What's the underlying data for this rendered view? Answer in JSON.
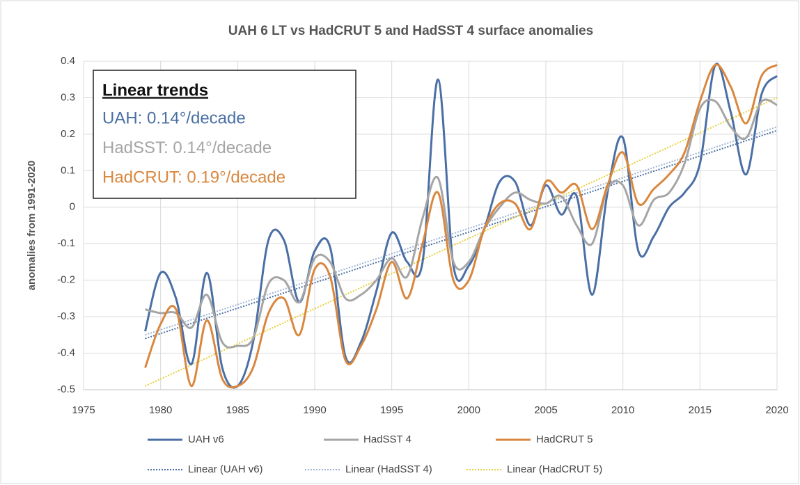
{
  "chart_data": {
    "type": "line",
    "title": "UAH 6 LT vs HadCRUT 5 and HadSST 4 surface anomalies",
    "y_label": "anomalies from 1991-2020",
    "x": [
      1979,
      1980,
      1981,
      1982,
      1983,
      1984,
      1985,
      1986,
      1987,
      1988,
      1989,
      1990,
      1991,
      1992,
      1993,
      1994,
      1995,
      1996,
      1997,
      1998,
      1999,
      2000,
      2001,
      2002,
      2003,
      2004,
      2005,
      2006,
      2007,
      2008,
      2009,
      2010,
      2011,
      2012,
      2013,
      2014,
      2015,
      2016,
      2017,
      2018,
      2019,
      2020
    ],
    "series": [
      {
        "name": "UAH v6",
        "color": "#4a6fa5",
        "values": [
          -0.34,
          -0.18,
          -0.25,
          -0.43,
          -0.18,
          -0.44,
          -0.49,
          -0.37,
          -0.09,
          -0.09,
          -0.26,
          -0.12,
          -0.11,
          -0.41,
          -0.37,
          -0.23,
          -0.07,
          -0.15,
          -0.15,
          0.35,
          -0.16,
          -0.16,
          -0.06,
          0.07,
          0.07,
          -0.05,
          0.06,
          -0.02,
          0.03,
          -0.24,
          0.04,
          0.19,
          -0.12,
          -0.08,
          0.0,
          0.04,
          0.12,
          0.39,
          0.26,
          0.09,
          0.31,
          0.36
        ]
      },
      {
        "name": "HadSST 4",
        "color": "#a5a5a5",
        "values": [
          -0.28,
          -0.29,
          -0.29,
          -0.33,
          -0.24,
          -0.37,
          -0.38,
          -0.36,
          -0.21,
          -0.2,
          -0.26,
          -0.14,
          -0.15,
          -0.25,
          -0.24,
          -0.2,
          -0.14,
          -0.19,
          -0.03,
          0.08,
          -0.15,
          -0.15,
          -0.06,
          0.0,
          0.04,
          0.02,
          0.01,
          0.03,
          -0.05,
          -0.1,
          0.05,
          0.06,
          -0.05,
          0.02,
          0.04,
          0.12,
          0.27,
          0.29,
          0.22,
          0.19,
          0.29,
          0.28
        ]
      },
      {
        "name": "HadCRUT 5",
        "color": "#d9873f",
        "values": [
          -0.44,
          -0.32,
          -0.28,
          -0.49,
          -0.31,
          -0.47,
          -0.49,
          -0.44,
          -0.29,
          -0.25,
          -0.35,
          -0.17,
          -0.19,
          -0.42,
          -0.38,
          -0.28,
          -0.15,
          -0.25,
          -0.1,
          0.04,
          -0.2,
          -0.2,
          -0.06,
          0.01,
          0.01,
          -0.06,
          0.07,
          0.04,
          0.06,
          -0.06,
          0.06,
          0.15,
          0.01,
          0.05,
          0.09,
          0.15,
          0.29,
          0.39,
          0.33,
          0.23,
          0.36,
          0.39
        ]
      }
    ],
    "trends": [
      {
        "name": "Linear (UAH v6)",
        "color": "#4a6fa5",
        "x": [
          1979,
          2020
        ],
        "values": [
          -0.36,
          0.21
        ]
      },
      {
        "name": "Linear (HadSST 4)",
        "color": "#9fb3d6",
        "x": [
          1979,
          2020
        ],
        "values": [
          -0.35,
          0.22
        ]
      },
      {
        "name": "Linear (HadCRUT 5)",
        "color": "#e6cf3c",
        "x": [
          1979,
          2020
        ],
        "values": [
          -0.49,
          0.3
        ]
      }
    ],
    "annotations": {
      "heading": "Linear trends",
      "lines": [
        {
          "text": "UAH: 0.14°/decade",
          "color": "#4a6fa5"
        },
        {
          "text": "HadSST: 0.14°/decade",
          "color": "#a5a5a5"
        },
        {
          "text": "HadCRUT: 0.19°/decade",
          "color": "#d9873f"
        }
      ]
    },
    "xlim": [
      1975,
      2020
    ],
    "xticks": [
      1975,
      1980,
      1985,
      1990,
      1995,
      2000,
      2005,
      2010,
      2015,
      2020
    ],
    "ylim": [
      -0.5,
      0.4
    ],
    "yticks": [
      -0.5,
      -0.4,
      -0.3,
      -0.2,
      -0.1,
      0,
      0.1,
      0.2,
      0.3,
      0.4
    ],
    "grid": true
  }
}
